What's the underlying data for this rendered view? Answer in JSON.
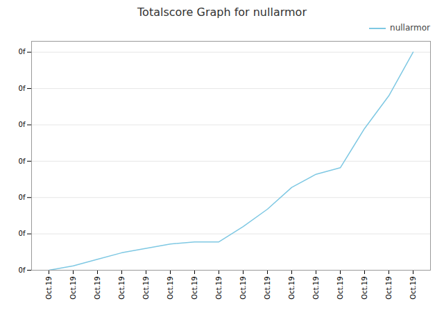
{
  "chart_data": {
    "type": "line",
    "title": "Totalscore Graph for nullarmor",
    "categories": [
      "Oct.19",
      "Oct.19",
      "Oct.19",
      "Oct.19",
      "Oct.19",
      "Oct.19",
      "Oct.19",
      "Oct.19",
      "Oct.19",
      "Oct.19",
      "Oct.19",
      "Oct.19",
      "Oct.19",
      "Oct.19",
      "Oct.19",
      "Oct.19"
    ],
    "series": [
      {
        "name": "nullarmor",
        "color": "#7ec8e3",
        "values": [
          0,
          2,
          5,
          8,
          10,
          12,
          13,
          13,
          20,
          28,
          38,
          44,
          47,
          65,
          80,
          100
        ]
      }
    ],
    "ylim": [
      0,
      105
    ],
    "yticks": [
      {
        "value": 0,
        "label": "0f"
      },
      {
        "value": 16.666666666666668,
        "label": "0f"
      },
      {
        "value": 33.333333333333336,
        "label": "0f"
      },
      {
        "value": 50,
        "label": "0f"
      },
      {
        "value": 66.66666666666667,
        "label": "0f"
      },
      {
        "value": 83.33333333333334,
        "label": "0f"
      },
      {
        "value": 100,
        "label": "0f"
      }
    ],
    "grid": true,
    "legend": "upper right"
  }
}
